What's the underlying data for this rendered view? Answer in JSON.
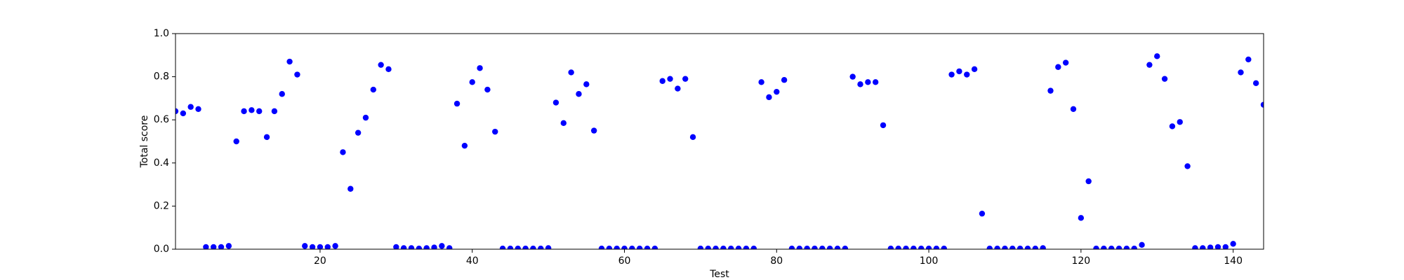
{
  "chart_data": {
    "type": "scatter",
    "x_label": "Test",
    "y_label": "Total score",
    "x": [
      1,
      2,
      3,
      4,
      5,
      6,
      7,
      8,
      9,
      10,
      11,
      12,
      13,
      14,
      15,
      16,
      17,
      18,
      19,
      20,
      21,
      22,
      23,
      24,
      25,
      26,
      27,
      28,
      29,
      30,
      31,
      32,
      33,
      34,
      35,
      36,
      37,
      38,
      39,
      40,
      41,
      42,
      43,
      44,
      45,
      46,
      47,
      48,
      49,
      50,
      51,
      52,
      53,
      54,
      55,
      56,
      57,
      58,
      59,
      60,
      61,
      62,
      63,
      64,
      65,
      66,
      67,
      68,
      69,
      70,
      71,
      72,
      73,
      74,
      75,
      76,
      77,
      78,
      79,
      80,
      81,
      82,
      83,
      84,
      85,
      86,
      87,
      88,
      89,
      90,
      91,
      92,
      93,
      94,
      95,
      96,
      97,
      98,
      99,
      100,
      101,
      102,
      103,
      104,
      105,
      106,
      107,
      108,
      109,
      110,
      111,
      112,
      113,
      114,
      115,
      116,
      117,
      118,
      119,
      120,
      121,
      122,
      123,
      124,
      125,
      126,
      127,
      128,
      129,
      130,
      131,
      132,
      133,
      134,
      135,
      136,
      137,
      138,
      139,
      140,
      141,
      142,
      143,
      144
    ],
    "values": [
      0.64,
      0.63,
      0.66,
      0.65,
      0.01,
      0.01,
      0.01,
      0.015,
      0.5,
      0.64,
      0.645,
      0.64,
      0.52,
      0.64,
      0.72,
      0.87,
      0.81,
      0.015,
      0.01,
      0.01,
      0.01,
      0.015,
      0.45,
      0.28,
      0.54,
      0.61,
      0.74,
      0.855,
      0.835,
      0.01,
      0.005,
      0.005,
      0.003,
      0.005,
      0.008,
      0.015,
      0.005,
      0.675,
      0.48,
      0.775,
      0.84,
      0.74,
      0.545,
      0.003,
      0.003,
      0.003,
      0.003,
      0.003,
      0.003,
      0.005,
      0.68,
      0.585,
      0.82,
      0.72,
      0.765,
      0.55,
      0.003,
      0.003,
      0.003,
      0.003,
      0.003,
      0.003,
      0.003,
      0.003,
      0.78,
      0.79,
      0.745,
      0.79,
      0.52,
      0.003,
      0.003,
      0.003,
      0.003,
      0.003,
      0.003,
      0.003,
      0.003,
      0.775,
      0.705,
      0.73,
      0.785,
      0.003,
      0.003,
      0.003,
      0.003,
      0.003,
      0.003,
      0.003,
      0.003,
      0.8,
      0.765,
      0.775,
      0.775,
      0.575,
      0.003,
      0.003,
      0.003,
      0.003,
      0.003,
      0.003,
      0.003,
      0.003,
      0.81,
      0.825,
      0.81,
      0.835,
      0.165,
      0.003,
      0.003,
      0.003,
      0.003,
      0.003,
      0.003,
      0.003,
      0.005,
      0.735,
      0.845,
      0.865,
      0.65,
      0.145,
      0.315,
      0.003,
      0.003,
      0.003,
      0.003,
      0.003,
      0.003,
      0.02,
      0.855,
      0.895,
      0.79,
      0.57,
      0.59,
      0.385,
      0.005,
      0.005,
      0.008,
      0.01,
      0.01,
      0.025,
      0.82,
      0.88,
      0.77,
      0.67
    ],
    "color": "#0000ff",
    "xlim": [
      1,
      144
    ],
    "xticks": [
      20,
      40,
      60,
      80,
      100,
      120,
      140
    ],
    "ylim": [
      0,
      1
    ],
    "yticks": [
      {
        "value": 0,
        "label": "0.0"
      },
      0.2,
      0.4,
      0.6,
      0.8,
      {
        "value": 1,
        "label": "1.0"
      }
    ]
  }
}
